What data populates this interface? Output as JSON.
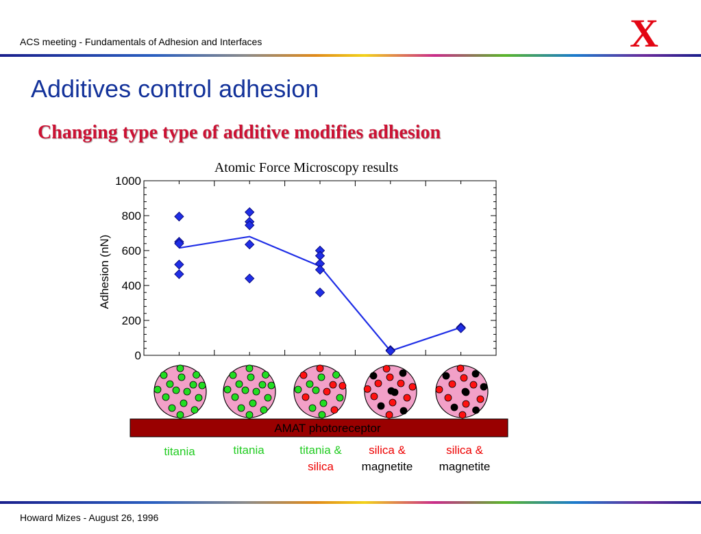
{
  "header": {
    "text": "ACS meeting - Fundamentals of Adhesion and Interfaces"
  },
  "logo": {
    "text": "X",
    "color": "#e30613"
  },
  "title": "Additives control adhesion",
  "subtitle": "Changing type type of additive modifies adhesion",
  "footer": {
    "text": "Howard Mizes - August 26, 1996"
  },
  "colors": {
    "title": "#13329a",
    "subtitle": "#cc1133",
    "marker": "#1f2ee6",
    "line": "#1f2ee6",
    "particle_bg": "#f2a0c8",
    "titania_dot": "#22dd22",
    "silica_dot": "#ff1111",
    "magnetite_dot": "#000000",
    "substrate": "#990000",
    "label_green": "#22cc22",
    "label_red": "#ee0000",
    "label_black": "#000000"
  },
  "chart_data": {
    "type": "scatter",
    "title": "Atomic Force Microscopy results",
    "ylabel": "Adhesion (nN)",
    "xlabel": "",
    "ylim": [
      0,
      1000
    ],
    "yticks": [
      "0",
      "200",
      "400",
      "600",
      "800",
      "1000"
    ],
    "categories": [
      "titania",
      "titania",
      "titania & silica",
      "silica & magnetite",
      "silica & magnetite"
    ],
    "series": [
      {
        "type": "scatter",
        "points": [
          [
            1,
            795
          ],
          [
            1,
            650
          ],
          [
            1,
            640
          ],
          [
            1,
            520
          ],
          [
            1,
            465
          ],
          [
            2,
            820
          ],
          [
            2,
            765
          ],
          [
            2,
            745
          ],
          [
            2,
            635
          ],
          [
            2,
            440
          ],
          [
            3,
            600
          ],
          [
            3,
            570
          ],
          [
            3,
            525
          ],
          [
            3,
            490
          ],
          [
            3,
            360
          ],
          [
            4,
            30
          ],
          [
            4,
            25
          ],
          [
            5,
            160
          ],
          [
            5,
            155
          ]
        ]
      },
      {
        "type": "line",
        "values": [
          615,
          680,
          510,
          25,
          160
        ]
      }
    ]
  },
  "particles": [
    {
      "composition": "titania"
    },
    {
      "composition": "titania"
    },
    {
      "composition": "titania & silica"
    },
    {
      "composition": "silica & magnetite"
    },
    {
      "composition": "silica & magnetite"
    }
  ],
  "substrate_label": "AMAT photoreceptor",
  "labels": [
    {
      "lines": [
        {
          "text": "titania",
          "color": "green"
        }
      ]
    },
    {
      "lines": [
        {
          "text": "titania",
          "color": "green"
        }
      ]
    },
    {
      "lines": [
        {
          "text": "titania &",
          "color": "green"
        },
        {
          "text": "silica",
          "color": "red"
        }
      ]
    },
    {
      "lines": [
        {
          "text": "silica &",
          "color": "red"
        },
        {
          "text": "magnetite",
          "color": "black"
        }
      ]
    },
    {
      "lines": [
        {
          "text": "silica &",
          "color": "red"
        },
        {
          "text": "magnetite",
          "color": "black"
        }
      ]
    }
  ]
}
